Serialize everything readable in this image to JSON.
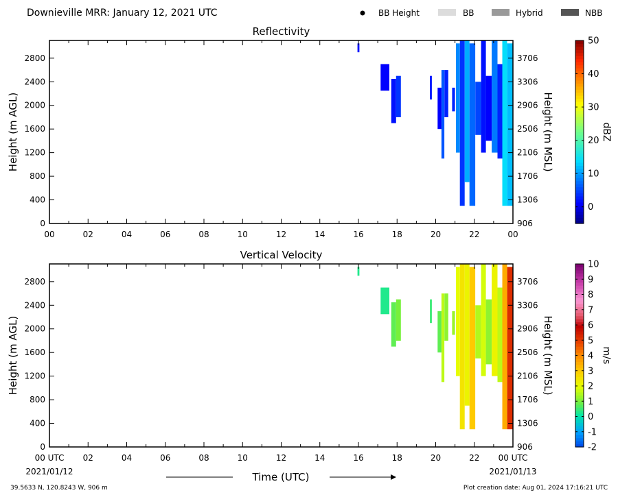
{
  "header": {
    "title": "Downieville MRR:  January 12, 2021 UTC",
    "legend": [
      {
        "label": "BB Height",
        "kind": "dot",
        "color": "#000000"
      },
      {
        "label": "BB",
        "kind": "swatch",
        "color": "#dcdcdc"
      },
      {
        "label": "Hybrid",
        "kind": "swatch",
        "color": "#9a9a9a"
      },
      {
        "label": "NBB",
        "kind": "swatch",
        "color": "#555555"
      }
    ]
  },
  "footer": {
    "location": "39.5633 N, 120.8243 W, 906 m",
    "created": "Plot creation date: Aug 01, 2024 17:16:21 UTC",
    "date_start": "2021/01/12",
    "date_end": "2021/01/13",
    "xlabel": "Time (UTC)"
  },
  "chart_data": [
    {
      "type": "heatmap",
      "title": "Reflectivity",
      "ylabel": "Height (m AGL)",
      "y2label": "Height (m MSL)",
      "colorbar_label": "dBZ",
      "colormap": "jet",
      "clim": [
        -5,
        50
      ],
      "colorbar_ticks": [
        "0",
        "10",
        "20",
        "30",
        "40",
        "50"
      ],
      "colorbar_tick_values": [
        0,
        10,
        20,
        30,
        40,
        50
      ],
      "xlim": [
        0,
        24
      ],
      "ylim": [
        0,
        3100
      ],
      "x_ticks": [
        "00",
        "02",
        "04",
        "06",
        "08",
        "10",
        "12",
        "14",
        "16",
        "18",
        "20",
        "22",
        "00"
      ],
      "y_ticks": [
        "0",
        "400",
        "800",
        "1200",
        "1600",
        "2000",
        "2400",
        "2800"
      ],
      "y2_ticks": [
        "906",
        "1306",
        "1706",
        "2106",
        "2506",
        "2906",
        "3306",
        "3706"
      ],
      "echoes": [
        {
          "t0": 15.95,
          "t1": 16.05,
          "base": 2900,
          "top": 3050,
          "value": 2
        },
        {
          "t0": 17.15,
          "t1": 17.6,
          "base": 2250,
          "top": 2700,
          "value": 1
        },
        {
          "t0": 17.7,
          "t1": 17.95,
          "base": 1700,
          "top": 2450,
          "value": 2
        },
        {
          "t0": 17.95,
          "t1": 18.2,
          "base": 1800,
          "top": 2500,
          "value": 4
        },
        {
          "t0": 19.7,
          "t1": 19.8,
          "base": 2100,
          "top": 2500,
          "value": 2
        },
        {
          "t0": 20.1,
          "t1": 20.3,
          "base": 1600,
          "top": 2300,
          "value": 1
        },
        {
          "t0": 20.3,
          "t1": 20.45,
          "base": 1100,
          "top": 2600,
          "value": 6
        },
        {
          "t0": 20.45,
          "t1": 20.65,
          "base": 1800,
          "top": 2600,
          "value": 3
        },
        {
          "t0": 20.85,
          "t1": 21.0,
          "base": 1900,
          "top": 2300,
          "value": 3
        },
        {
          "t0": 21.05,
          "t1": 21.25,
          "base": 1200,
          "top": 3050,
          "value": 9
        },
        {
          "t0": 21.25,
          "t1": 21.5,
          "base": 300,
          "top": 3100,
          "value": 4
        },
        {
          "t0": 21.5,
          "t1": 21.75,
          "base": 700,
          "top": 3100,
          "value": 11
        },
        {
          "t0": 21.75,
          "t1": 22.05,
          "base": 300,
          "top": 3050,
          "value": 7
        },
        {
          "t0": 22.05,
          "t1": 22.35,
          "base": 1500,
          "top": 2400,
          "value": 5
        },
        {
          "t0": 22.35,
          "t1": 22.6,
          "base": 1200,
          "top": 3100,
          "value": 2
        },
        {
          "t0": 22.6,
          "t1": 22.9,
          "base": 1400,
          "top": 2500,
          "value": 1
        },
        {
          "t0": 22.9,
          "t1": 23.2,
          "base": 1200,
          "top": 3100,
          "value": 8
        },
        {
          "t0": 23.2,
          "t1": 23.45,
          "base": 1100,
          "top": 2700,
          "value": 3
        },
        {
          "t0": 23.45,
          "t1": 23.7,
          "base": 300,
          "top": 3100,
          "value": 14
        },
        {
          "t0": 23.7,
          "t1": 24.0,
          "base": 300,
          "top": 3050,
          "value": 12
        }
      ]
    },
    {
      "type": "heatmap",
      "title": "Vertical Velocity",
      "ylabel": "Height (m AGL)",
      "y2label": "Height (m MSL)",
      "colorbar_label": "m/s",
      "colormap": "velocity",
      "clim": [
        -2,
        10
      ],
      "colorbar_ticks": [
        "-2",
        "-1",
        "0",
        "1",
        "2",
        "3",
        "4",
        "5",
        "6",
        "7",
        "8",
        "9",
        "10"
      ],
      "colorbar_tick_values": [
        -2,
        -1,
        0,
        1,
        2,
        3,
        4,
        5,
        6,
        7,
        8,
        9,
        10
      ],
      "xlim": [
        0,
        24
      ],
      "ylim": [
        0,
        3100
      ],
      "x_ticks": [
        "00 UTC",
        "02",
        "04",
        "06",
        "08",
        "10",
        "12",
        "14",
        "16",
        "18",
        "20",
        "22",
        "00 UTC"
      ],
      "y_ticks": [
        "0",
        "400",
        "800",
        "1200",
        "1600",
        "2000",
        "2400",
        "2800"
      ],
      "y2_ticks": [
        "906",
        "1306",
        "1706",
        "2106",
        "2506",
        "2906",
        "3306",
        "3706"
      ],
      "echoes": [
        {
          "t0": 15.95,
          "t1": 16.05,
          "base": 2900,
          "top": 3050,
          "value": 0.3
        },
        {
          "t0": 17.15,
          "t1": 17.6,
          "base": 2250,
          "top": 2700,
          "value": 0.3
        },
        {
          "t0": 17.7,
          "t1": 17.95,
          "base": 1700,
          "top": 2450,
          "value": 0.8
        },
        {
          "t0": 17.95,
          "t1": 18.2,
          "base": 1800,
          "top": 2500,
          "value": 1.0
        },
        {
          "t0": 19.7,
          "t1": 19.8,
          "base": 2100,
          "top": 2500,
          "value": 0.5
        },
        {
          "t0": 20.1,
          "t1": 20.3,
          "base": 1600,
          "top": 2300,
          "value": 0.8
        },
        {
          "t0": 20.3,
          "t1": 20.45,
          "base": 1100,
          "top": 2600,
          "value": 1.6
        },
        {
          "t0": 20.45,
          "t1": 20.65,
          "base": 1800,
          "top": 2600,
          "value": 1.2
        },
        {
          "t0": 20.85,
          "t1": 21.0,
          "base": 1900,
          "top": 2300,
          "value": 1.3
        },
        {
          "t0": 21.05,
          "t1": 21.25,
          "base": 1200,
          "top": 3050,
          "value": 2.0
        },
        {
          "t0": 21.25,
          "t1": 21.5,
          "base": 300,
          "top": 3100,
          "value": 2.5
        },
        {
          "t0": 21.5,
          "t1": 21.75,
          "base": 700,
          "top": 3100,
          "value": 2.2
        },
        {
          "t0": 21.75,
          "t1": 22.05,
          "base": 300,
          "top": 3050,
          "value": 3.0
        },
        {
          "t0": 22.05,
          "t1": 22.35,
          "base": 1500,
          "top": 2400,
          "value": 1.5
        },
        {
          "t0": 22.35,
          "t1": 22.6,
          "base": 1200,
          "top": 3100,
          "value": 1.8
        },
        {
          "t0": 22.6,
          "t1": 22.9,
          "base": 1400,
          "top": 2500,
          "value": 1.2
        },
        {
          "t0": 22.9,
          "t1": 23.2,
          "base": 1200,
          "top": 3100,
          "value": 2.2
        },
        {
          "t0": 23.2,
          "t1": 23.45,
          "base": 1100,
          "top": 2700,
          "value": 1.6
        },
        {
          "t0": 23.45,
          "t1": 23.7,
          "base": 300,
          "top": 3100,
          "value": 3.5
        },
        {
          "t0": 23.7,
          "t1": 24.0,
          "base": 300,
          "top": 3050,
          "value": 5.2
        }
      ]
    }
  ]
}
